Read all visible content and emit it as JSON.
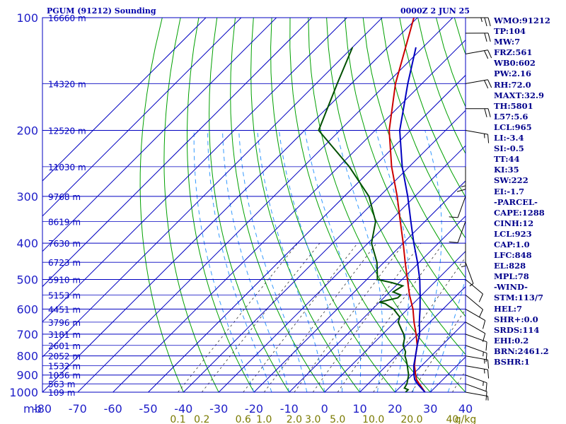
{
  "header": {
    "title": "PGUM (91212) Sounding",
    "valid_time": "0000Z  2 JUN 25"
  },
  "indices": [
    "WMO:91212",
    "TP:104",
    "MW:7",
    "FRZ:561",
    "WB0:602",
    "PW:2.16",
    "RH:72.0",
    "MAXT:32.9",
    "TH:5801",
    "L57:5.6",
    "LCL:965",
    "LI:-3.4",
    "SI:-0.5",
    "TT:44",
    "KI:35",
    "SW:222",
    "EI:-1.7",
    "-PARCEL-",
    "CAPE:1288",
    "CINH:12",
    "LCL:923",
    "CAP:1.0",
    "LFC:848",
    "EL:828",
    "MPL:78",
    "-WIND-",
    "STM:113/7",
    "HEL:7",
    "SHR+:0.0",
    "SRDS:114",
    "EHI:0.2",
    "BRN:2461.2",
    "BSHR:1"
  ],
  "colors": {
    "grid": "#0000c0",
    "label": "#1e1ec8",
    "temperature": "#cc0000",
    "dewpoint": "#005000",
    "parcel": "#0000c0",
    "dry_adiabat": "#00a000",
    "moist_adiabat": "#3399ff",
    "mixing_ratio": "#333333",
    "mixing_ratio_label": "#7a7a00",
    "wind_barb": "#000000"
  },
  "chart_data": {
    "type": "skew-t",
    "y_axis_label": "mb",
    "pressure_ticks": [
      100,
      200,
      300,
      400,
      500,
      600,
      700,
      800,
      900,
      1000
    ],
    "temperature_ticks": [
      -80,
      -70,
      -60,
      -50,
      -40,
      -30,
      -20,
      -10,
      0,
      10,
      20,
      30,
      40
    ],
    "temperature_tick_labels": [
      "-80",
      "-70",
      "-60",
      "-50",
      "-40",
      "-30",
      "-20",
      "-10",
      "0",
      "10",
      "20",
      "30",
      "40"
    ],
    "xlim": [
      -80,
      40
    ],
    "ylim": [
      1000,
      100
    ],
    "height_levels": [
      {
        "p": 100,
        "h": "16660 m"
      },
      {
        "p": 150,
        "h": "14320 m"
      },
      {
        "p": 200,
        "h": "12520 m"
      },
      {
        "p": 250,
        "h": "11030 m"
      },
      {
        "p": 300,
        "h": "9768 m"
      },
      {
        "p": 350,
        "h": "8619 m"
      },
      {
        "p": 400,
        "h": "7630 m"
      },
      {
        "p": 450,
        "h": "6723 m"
      },
      {
        "p": 500,
        "h": "5910 m"
      },
      {
        "p": 550,
        "h": "5153 m"
      },
      {
        "p": 600,
        "h": "4451 m"
      },
      {
        "p": 650,
        "h": "3796 m"
      },
      {
        "p": 700,
        "h": "3181 m"
      },
      {
        "p": 750,
        "h": "2601 m"
      },
      {
        "p": 800,
        "h": "2052 m"
      },
      {
        "p": 850,
        "h": "1532 m"
      },
      {
        "p": 900,
        "h": "1036 m"
      },
      {
        "p": 950,
        "h": "563 m"
      },
      {
        "p": 1000,
        "h": "109 m"
      }
    ],
    "mixing_ratio_labels": [
      {
        "w": 0.1,
        "label": "0.1"
      },
      {
        "w": 0.2,
        "label": "0.2"
      },
      {
        "w": 0.6,
        "label": "0.6"
      },
      {
        "w": 1.0,
        "label": "1.0"
      },
      {
        "w": 2.0,
        "label": "2.0"
      },
      {
        "w": 3.0,
        "label": "3.0"
      },
      {
        "w": 5.0,
        "label": "5.0"
      },
      {
        "w": 10.0,
        "label": "10.0"
      },
      {
        "w": 20.0,
        "label": "20.0"
      },
      {
        "w": 40.0,
        "label": "40"
      }
    ],
    "mixing_ratio_unit": "g/kg",
    "series": [
      {
        "key": "temperature",
        "points": [
          [
            1000,
            28.5
          ],
          [
            950,
            24.5
          ],
          [
            925,
            22.5
          ],
          [
            900,
            21
          ],
          [
            850,
            18
          ],
          [
            800,
            15.5
          ],
          [
            750,
            13
          ],
          [
            700,
            9.5
          ],
          [
            650,
            5.5
          ],
          [
            600,
            1.5
          ],
          [
            550,
            -3.5
          ],
          [
            500,
            -8.5
          ],
          [
            450,
            -14
          ],
          [
            400,
            -20
          ],
          [
            350,
            -27
          ],
          [
            300,
            -35
          ],
          [
            250,
            -45
          ],
          [
            200,
            -56
          ],
          [
            150,
            -67.5
          ],
          [
            100,
            -81
          ]
        ]
      },
      {
        "key": "dewpoint",
        "points": [
          [
            1000,
            23
          ],
          [
            985,
            23
          ],
          [
            975,
            21.5
          ],
          [
            950,
            21
          ],
          [
            925,
            20
          ],
          [
            900,
            19
          ],
          [
            875,
            17.5
          ],
          [
            850,
            16
          ],
          [
            820,
            14
          ],
          [
            800,
            12.5
          ],
          [
            780,
            11.5
          ],
          [
            750,
            9
          ],
          [
            720,
            7.5
          ],
          [
            700,
            6
          ],
          [
            680,
            4
          ],
          [
            650,
            1
          ],
          [
            630,
            0
          ],
          [
            600,
            -4
          ],
          [
            590,
            -6
          ],
          [
            580,
            -8
          ],
          [
            575,
            -10
          ],
          [
            560,
            -6
          ],
          [
            550,
            -6
          ],
          [
            540,
            -9
          ],
          [
            520,
            -8
          ],
          [
            510,
            -12
          ],
          [
            500,
            -17
          ],
          [
            450,
            -22
          ],
          [
            400,
            -29
          ],
          [
            350,
            -34
          ],
          [
            300,
            -43
          ],
          [
            250,
            -57
          ],
          [
            200,
            -76
          ],
          [
            150,
            -84
          ],
          [
            120,
            -90
          ]
        ]
      },
      {
        "key": "parcel",
        "points": [
          [
            1000,
            28.5
          ],
          [
            950,
            24
          ],
          [
            925,
            22
          ],
          [
            900,
            20.5
          ],
          [
            850,
            17.8
          ],
          [
            800,
            15.5
          ],
          [
            750,
            13
          ],
          [
            700,
            10.5
          ],
          [
            650,
            7
          ],
          [
            600,
            3.5
          ],
          [
            550,
            -0.5
          ],
          [
            500,
            -5
          ],
          [
            450,
            -10.5
          ],
          [
            400,
            -17
          ],
          [
            350,
            -24
          ],
          [
            300,
            -32
          ],
          [
            250,
            -42
          ],
          [
            200,
            -53
          ],
          [
            150,
            -64
          ],
          [
            120,
            -72
          ]
        ]
      }
    ],
    "wind_barbs": [
      {
        "p": 1000,
        "dir": 100,
        "kt": 5
      },
      {
        "p": 950,
        "dir": 110,
        "kt": 10
      },
      {
        "p": 900,
        "dir": 110,
        "kt": 15
      },
      {
        "p": 850,
        "dir": 100,
        "kt": 15
      },
      {
        "p": 800,
        "dir": 100,
        "kt": 15
      },
      {
        "p": 750,
        "dir": 110,
        "kt": 15
      },
      {
        "p": 700,
        "dir": 110,
        "kt": 10
      },
      {
        "p": 650,
        "dir": 120,
        "kt": 10
      },
      {
        "p": 600,
        "dir": 120,
        "kt": 10
      },
      {
        "p": 550,
        "dir": 130,
        "kt": 10
      },
      {
        "p": 500,
        "dir": 130,
        "kt": 10
      },
      {
        "p": 450,
        "dir": 160,
        "kt": 5
      },
      {
        "p": 400,
        "dir": 180,
        "kt": 5
      },
      {
        "p": 350,
        "dir": 200,
        "kt": 10
      },
      {
        "p": 300,
        "dir": 200,
        "kt": 10
      },
      {
        "p": 250,
        "dir": 180,
        "kt": 15
      },
      {
        "p": 200,
        "dir": 100,
        "kt": 15
      },
      {
        "p": 175,
        "dir": 90,
        "kt": 20
      },
      {
        "p": 150,
        "dir": 80,
        "kt": 20
      },
      {
        "p": 125,
        "dir": 80,
        "kt": 20
      },
      {
        "p": 110,
        "dir": 90,
        "kt": 20
      },
      {
        "p": 100,
        "dir": 90,
        "kt": 25
      }
    ]
  }
}
